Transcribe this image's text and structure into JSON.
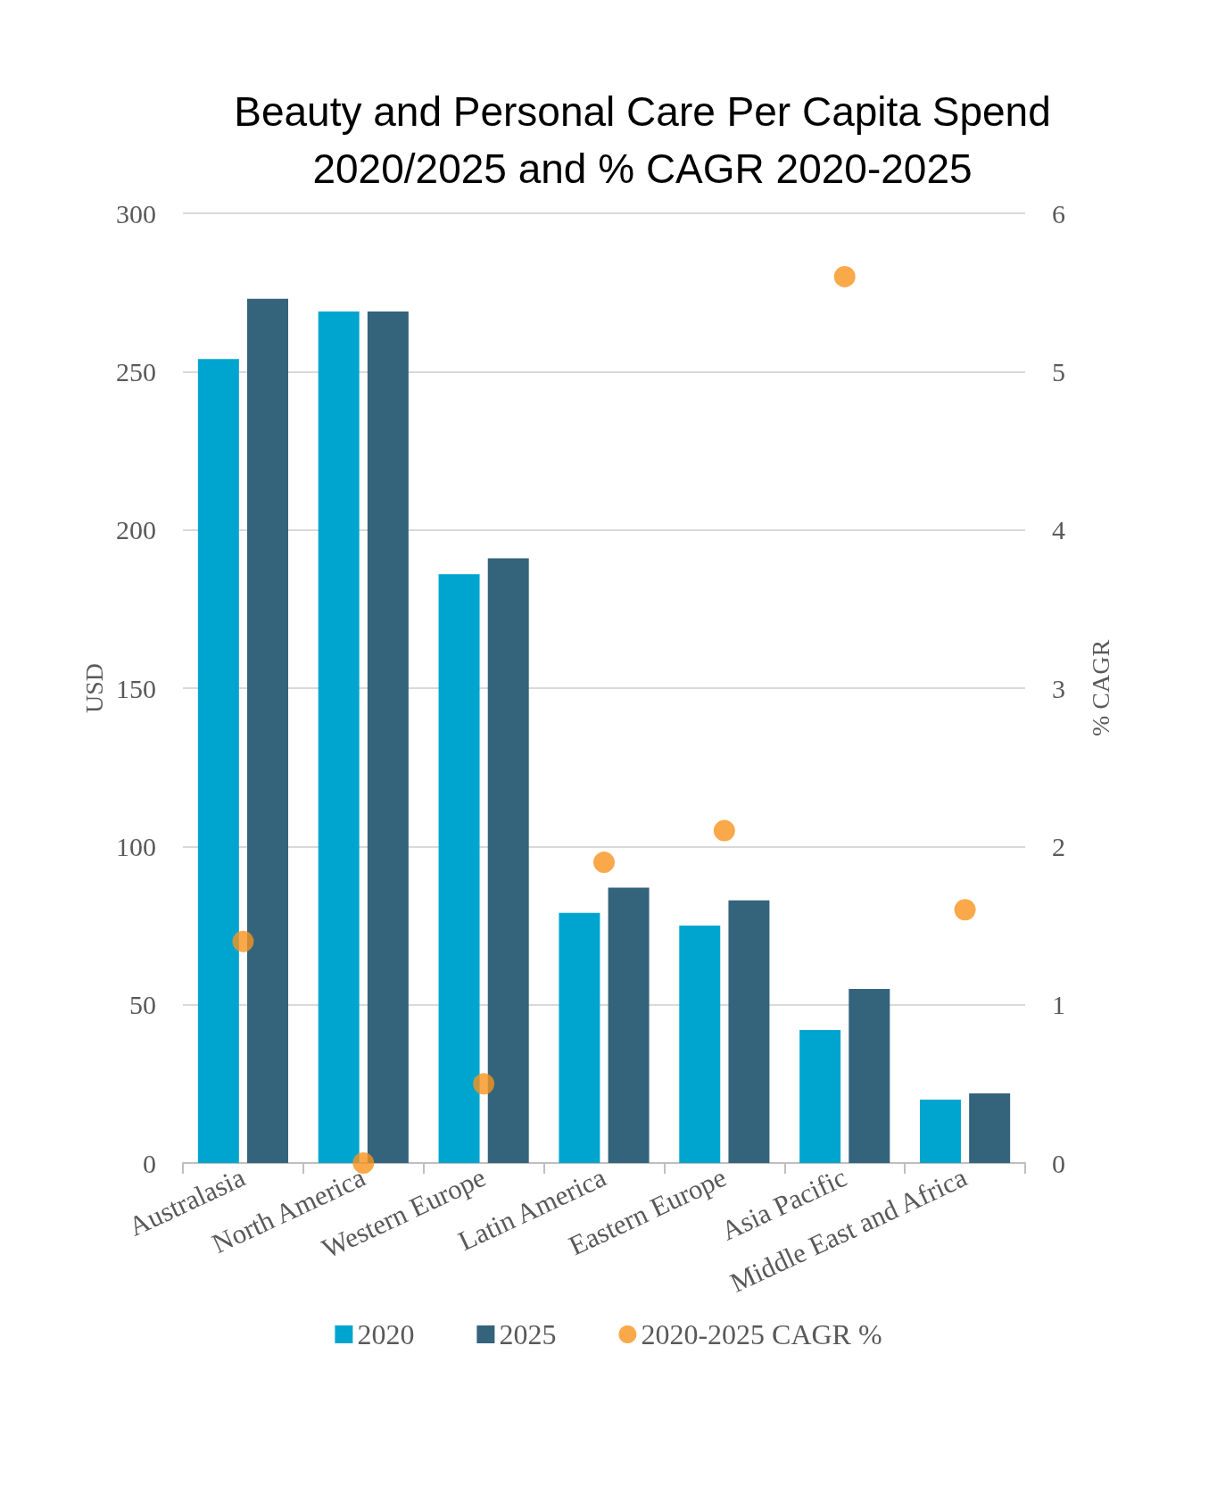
{
  "chart_data": {
    "type": "bar",
    "title": "Beauty and Personal Care Per Capita Spend\n2020/2025 and % CAGR 2020-2025",
    "categories": [
      "Australasia",
      "North America",
      "Western Europe",
      "Latin America",
      "Eastern Europe",
      "Asia Pacific",
      "Middle East and Africa"
    ],
    "series": [
      {
        "name": "2020",
        "color": "#00a5cf",
        "values": [
          254,
          269,
          186,
          79,
          75,
          42,
          20
        ]
      },
      {
        "name": "2025",
        "color": "#34637c",
        "values": [
          273,
          269,
          191,
          87,
          83,
          55,
          22
        ]
      },
      {
        "name": "2020-2025 CAGR %",
        "type": "scatter",
        "axis": "y2",
        "color": "#f7941d",
        "x": [
          "Australasia",
          "North America",
          "Western Europe",
          "Latin America",
          "Eastern Europe",
          "Asia Pacific",
          "Middle East and Africa"
        ],
        "values": [
          1.4,
          0,
          0.5,
          1.9,
          2.1,
          5.6,
          1.6
        ]
      }
    ],
    "ylabel": "USD",
    "y2label": "% CAGR",
    "ylim": [
      0,
      300
    ],
    "yticks": [
      0,
      50,
      100,
      150,
      200,
      250,
      300
    ],
    "y2lim": [
      0,
      6
    ],
    "y2ticks": [
      0,
      1,
      2,
      3,
      4,
      5,
      6
    ],
    "grid": "y",
    "legend": "bottom",
    "marker": "circle"
  }
}
